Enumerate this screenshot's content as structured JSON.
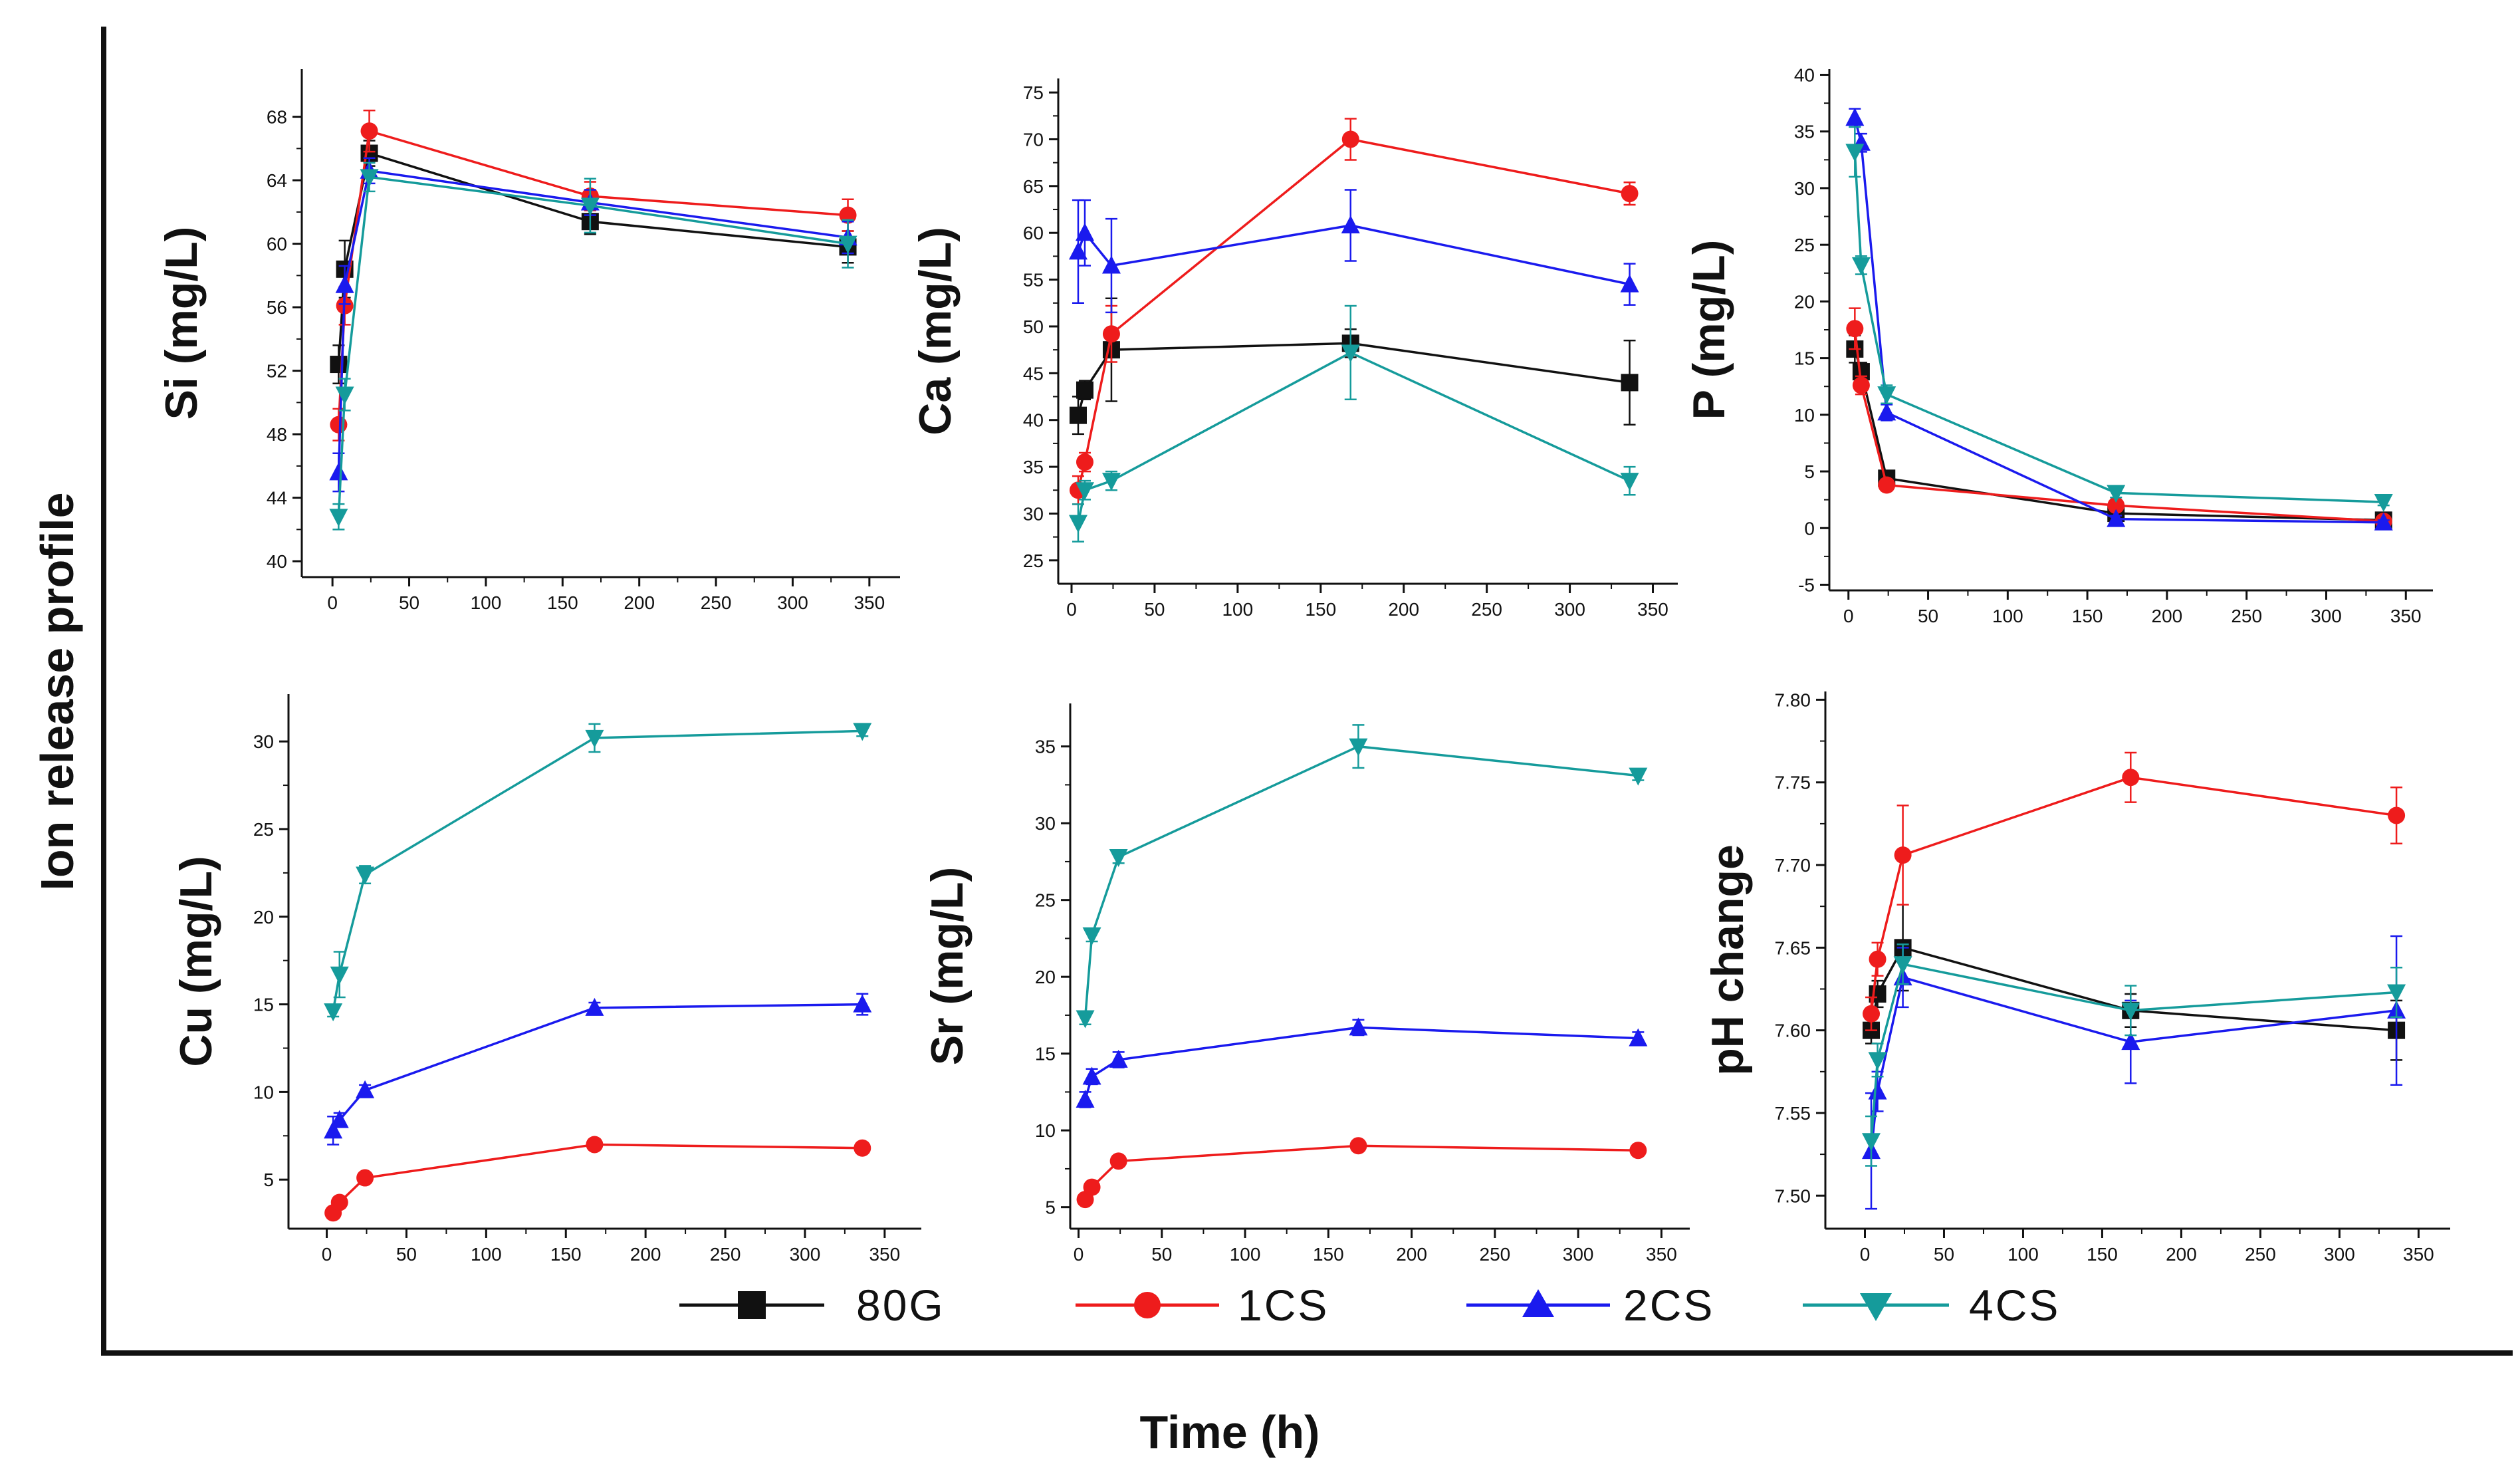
{
  "figure": {
    "y_axis_title": "Ion release profile",
    "x_axis_title": "Time (h)"
  },
  "colors": {
    "80G": "#111111",
    "1CS": "#ee1c1c",
    "2CS": "#1a1aee",
    "4CS": "#159b9b"
  },
  "legend": [
    {
      "name": "80G",
      "marker": "square"
    },
    {
      "name": "1CS",
      "marker": "circle"
    },
    {
      "name": "2CS",
      "marker": "triangle-up"
    },
    {
      "name": "4CS",
      "marker": "triangle-down"
    }
  ],
  "chart_data": [
    {
      "id": "si",
      "type": "line",
      "ylabel": "Si (mg/L)",
      "xlim": [
        -20,
        370
      ],
      "xticks": [
        0,
        50,
        100,
        150,
        200,
        250,
        300,
        350
      ],
      "ylim": [
        39,
        71
      ],
      "yticks": [
        40,
        44,
        48,
        52,
        56,
        60,
        64,
        68
      ],
      "x": [
        4,
        8,
        24,
        168,
        336
      ],
      "series": [
        {
          "name": "80G",
          "values": [
            52.4,
            58.4,
            65.7,
            61.4,
            59.8
          ],
          "err": [
            1.2,
            1.8,
            0.8,
            0.8,
            1.0
          ]
        },
        {
          "name": "1CS",
          "values": [
            48.6,
            56.1,
            67.1,
            63.0,
            61.8
          ],
          "err": [
            1.0,
            1.2,
            1.3,
            0.9,
            1.0
          ]
        },
        {
          "name": "2CS",
          "values": [
            45.6,
            57.4,
            64.6,
            62.6,
            60.4
          ],
          "err": [
            1.2,
            1.2,
            0.8,
            0.8,
            1.0
          ]
        },
        {
          "name": "4CS",
          "values": [
            42.8,
            50.5,
            64.2,
            62.4,
            60.0
          ],
          "err": [
            0.8,
            1.0,
            0.9,
            1.7,
            1.5
          ]
        }
      ]
    },
    {
      "id": "ca",
      "type": "line",
      "ylabel": "Ca (mg/L)",
      "xlim": [
        -8,
        365
      ],
      "xticks": [
        0,
        50,
        100,
        150,
        200,
        250,
        300,
        350
      ],
      "ylim": [
        22.5,
        76.5
      ],
      "yticks": [
        25,
        30,
        35,
        40,
        45,
        50,
        55,
        60,
        65,
        70,
        75
      ],
      "x": [
        4,
        8,
        24,
        168,
        336
      ],
      "series": [
        {
          "name": "80G",
          "values": [
            40.5,
            43.2,
            47.5,
            48.2,
            44.0
          ],
          "err": [
            2.0,
            1.0,
            5.5,
            1.5,
            4.5
          ]
        },
        {
          "name": "1CS",
          "values": [
            32.5,
            35.5,
            49.2,
            70.0,
            64.2
          ],
          "err": [
            1.5,
            1.0,
            3.0,
            2.2,
            1.2
          ]
        },
        {
          "name": "2CS",
          "values": [
            58.0,
            60.0,
            56.5,
            60.8,
            54.5
          ],
          "err": [
            5.5,
            3.5,
            5.0,
            3.8,
            2.2
          ]
        },
        {
          "name": "4CS",
          "values": [
            29.0,
            32.5,
            33.5,
            47.2,
            33.5
          ],
          "err": [
            2.0,
            1.0,
            1.0,
            5.0,
            1.5
          ]
        }
      ]
    },
    {
      "id": "p",
      "type": "line",
      "ylabel": "P (mg/L)",
      "xlim": [
        -12,
        367
      ],
      "xticks": [
        0,
        50,
        100,
        150,
        200,
        250,
        300,
        350
      ],
      "ylim": [
        -5.5,
        40.5
      ],
      "yticks": [
        -5,
        0,
        5,
        10,
        15,
        20,
        25,
        30,
        35,
        40
      ],
      "x": [
        4,
        8,
        24,
        168,
        336
      ],
      "series": [
        {
          "name": "80G",
          "values": [
            15.8,
            13.8,
            4.4,
            1.3,
            0.7
          ],
          "err": [
            1.2,
            0.8,
            0.5,
            0.3,
            0.2
          ]
        },
        {
          "name": "1CS",
          "values": [
            17.6,
            12.6,
            3.8,
            2.0,
            0.6
          ],
          "err": [
            1.8,
            0.8,
            0.5,
            0.3,
            0.2
          ]
        },
        {
          "name": "2CS",
          "values": [
            36.2,
            34.0,
            10.2,
            0.8,
            0.5
          ],
          "err": [
            0.8,
            0.8,
            0.7,
            0.3,
            0.2
          ]
        },
        {
          "name": "4CS",
          "values": [
            33.2,
            23.2,
            11.8,
            3.1,
            2.3
          ],
          "err": [
            2.2,
            0.8,
            0.8,
            0.4,
            0.3
          ]
        }
      ]
    },
    {
      "id": "cu",
      "type": "line",
      "ylabel": "Cu (mg/L)",
      "xlim": [
        -24,
        373
      ],
      "xticks": [
        0,
        50,
        100,
        150,
        200,
        250,
        300,
        350
      ],
      "ylim": [
        2.2,
        32.7
      ],
      "yticks": [
        5,
        10,
        15,
        20,
        25,
        30
      ],
      "x": [
        4,
        8,
        24,
        168,
        336
      ],
      "series": [
        {
          "name": "1CS",
          "values": [
            3.1,
            3.7,
            5.1,
            7.0,
            6.8
          ],
          "err": [
            0.2,
            0.2,
            0.2,
            0.2,
            0.2
          ]
        },
        {
          "name": "2CS",
          "values": [
            7.8,
            8.4,
            10.1,
            14.8,
            15.0
          ],
          "err": [
            0.8,
            0.4,
            0.3,
            0.3,
            0.6
          ]
        },
        {
          "name": "4CS",
          "values": [
            14.6,
            16.7,
            22.4,
            30.2,
            30.6
          ],
          "err": [
            0.3,
            1.3,
            0.5,
            0.8,
            0.3
          ]
        }
      ]
    },
    {
      "id": "sr",
      "type": "line",
      "ylabel": "Sr (mg/L)",
      "xlim": [
        -5,
        367
      ],
      "xticks": [
        0,
        50,
        100,
        150,
        200,
        250,
        300,
        350
      ],
      "ylim": [
        3.6,
        37.8
      ],
      "yticks": [
        5,
        10,
        15,
        20,
        25,
        30,
        35
      ],
      "x": [
        4,
        8,
        24,
        168,
        336
      ],
      "series": [
        {
          "name": "1CS",
          "values": [
            5.5,
            6.3,
            8.0,
            9.0,
            8.7
          ],
          "err": [
            0.3,
            0.3,
            0.3,
            0.3,
            0.3
          ]
        },
        {
          "name": "2CS",
          "values": [
            12.0,
            13.5,
            14.6,
            16.7,
            16.0
          ],
          "err": [
            0.5,
            0.5,
            0.5,
            0.5,
            0.4
          ]
        },
        {
          "name": "4CS",
          "values": [
            17.3,
            22.7,
            27.8,
            35.0,
            33.1
          ],
          "err": [
            0.4,
            0.4,
            0.4,
            1.4,
            0.3
          ]
        }
      ]
    },
    {
      "id": "ph",
      "type": "line",
      "ylabel": "pH change",
      "xlim": [
        -25,
        370
      ],
      "xticks": [
        0,
        50,
        100,
        150,
        200,
        250,
        300,
        350
      ],
      "ylim": [
        7.48,
        7.805
      ],
      "yticks": [
        7.5,
        7.55,
        7.6,
        7.65,
        7.7,
        7.75,
        7.8
      ],
      "ytick_labels": [
        "7.50",
        "7.55",
        "7.60",
        "7.65",
        "7.70",
        "7.75",
        "7.80"
      ],
      "x": [
        4,
        8,
        24,
        168,
        336
      ],
      "series": [
        {
          "name": "80G",
          "values": [
            7.6,
            7.622,
            7.65,
            7.612,
            7.6
          ],
          "err": [
            0.008,
            0.008,
            0.026,
            0.01,
            0.018
          ]
        },
        {
          "name": "1CS",
          "values": [
            7.61,
            7.643,
            7.706,
            7.753,
            7.73
          ],
          "err": [
            0.01,
            0.01,
            0.03,
            0.015,
            0.017
          ]
        },
        {
          "name": "2CS",
          "values": [
            7.527,
            7.563,
            7.632,
            7.593,
            7.612
          ],
          "err": [
            0.035,
            0.012,
            0.018,
            0.025,
            0.045
          ]
        },
        {
          "name": "4CS",
          "values": [
            7.533,
            7.582,
            7.64,
            7.612,
            7.623
          ],
          "err": [
            0.015,
            0.01,
            0.012,
            0.015,
            0.015
          ]
        }
      ]
    }
  ]
}
